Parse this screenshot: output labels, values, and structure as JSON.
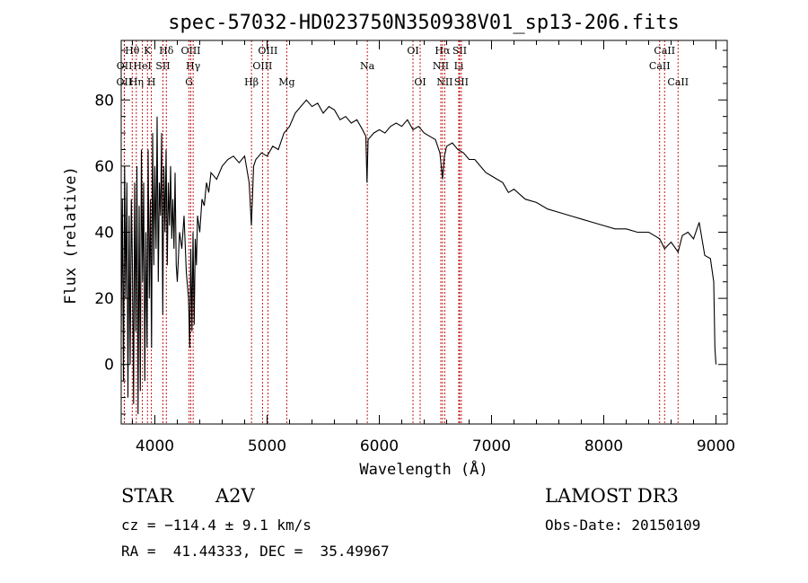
{
  "chart_data": {
    "type": "line",
    "title": "spec-57032-HD023750N350938V01_sp13-206.fits",
    "xlabel": "Wavelength (Å)",
    "ylabel": "Flux (relative)",
    "xlim": [
      3700,
      9100
    ],
    "ylim": [
      -18,
      98
    ],
    "xticks": [
      4000,
      5000,
      6000,
      7000,
      8000,
      9000
    ],
    "yticks": [
      0,
      20,
      40,
      60,
      80
    ],
    "series": [
      {
        "name": "flux",
        "x": [
          3700,
          3710,
          3720,
          3730,
          3740,
          3750,
          3760,
          3770,
          3780,
          3790,
          3800,
          3810,
          3820,
          3830,
          3840,
          3850,
          3860,
          3870,
          3880,
          3890,
          3900,
          3910,
          3920,
          3930,
          3940,
          3950,
          3960,
          3970,
          3980,
          3990,
          4000,
          4010,
          4020,
          4030,
          4040,
          4050,
          4060,
          4070,
          4080,
          4090,
          4100,
          4110,
          4120,
          4130,
          4140,
          4150,
          4160,
          4170,
          4180,
          4190,
          4200,
          4220,
          4240,
          4260,
          4280,
          4300,
          4310,
          4320,
          4330,
          4340,
          4350,
          4360,
          4370,
          4380,
          4400,
          4420,
          4440,
          4460,
          4480,
          4500,
          4550,
          4600,
          4650,
          4700,
          4750,
          4800,
          4840,
          4860,
          4880,
          4900,
          4950,
          5000,
          5050,
          5100,
          5150,
          5200,
          5250,
          5300,
          5350,
          5400,
          5450,
          5500,
          5550,
          5600,
          5650,
          5700,
          5750,
          5800,
          5850,
          5880,
          5890,
          5900,
          5950,
          6000,
          6050,
          6100,
          6150,
          6200,
          6250,
          6300,
          6350,
          6400,
          6450,
          6500,
          6540,
          6563,
          6580,
          6600,
          6650,
          6700,
          6750,
          6800,
          6850,
          6900,
          6950,
          7000,
          7050,
          7100,
          7150,
          7200,
          7300,
          7400,
          7500,
          7600,
          7700,
          7800,
          7900,
          8000,
          8100,
          8200,
          8300,
          8400,
          8450,
          8498,
          8542,
          8600,
          8662,
          8700,
          8750,
          8800,
          8850,
          8900,
          8950,
          8980,
          8990,
          9000
        ],
        "y": [
          10,
          50,
          -5,
          60,
          20,
          55,
          -10,
          45,
          0,
          50,
          30,
          -12,
          55,
          10,
          60,
          -15,
          48,
          -8,
          65,
          25,
          55,
          -5,
          40,
          5,
          65,
          20,
          50,
          5,
          70,
          30,
          60,
          35,
          75,
          25,
          55,
          45,
          70,
          15,
          60,
          40,
          65,
          30,
          55,
          42,
          60,
          38,
          50,
          35,
          58,
          30,
          25,
          40,
          35,
          45,
          28,
          20,
          5,
          35,
          10,
          40,
          12,
          38,
          30,
          45,
          40,
          50,
          48,
          55,
          52,
          58,
          56,
          60,
          62,
          63,
          61,
          63,
          55,
          42,
          60,
          62,
          64,
          63,
          66,
          65,
          70,
          72,
          76,
          78,
          80,
          78,
          79,
          76,
          78,
          77,
          74,
          75,
          73,
          74,
          71,
          69,
          55,
          68,
          70,
          71,
          70,
          72,
          73,
          72,
          74,
          71,
          72,
          70,
          69,
          68,
          64,
          56,
          63,
          66,
          67,
          65,
          64,
          62,
          62,
          60,
          58,
          57,
          56,
          55,
          52,
          53,
          50,
          49,
          47,
          46,
          45,
          44,
          43,
          42,
          41,
          41,
          40,
          40,
          39,
          38,
          35,
          37,
          34,
          39,
          40,
          38,
          43,
          33,
          32,
          25,
          5,
          0
        ]
      }
    ],
    "spectral_lines": [
      {
        "label": "OII",
        "wavelength": 3727,
        "row": 3
      },
      {
        "label": "OII",
        "wavelength": 3729,
        "row": 2
      },
      {
        "label": "Hθ",
        "wavelength": 3798,
        "row": 1
      },
      {
        "label": "K",
        "wavelength": 3934,
        "row": 1
      },
      {
        "label": "HeI",
        "wavelength": 3889,
        "row": 2
      },
      {
        "label": "Hη",
        "wavelength": 3835,
        "row": 3
      },
      {
        "label": "H",
        "wavelength": 3969,
        "row": 3
      },
      {
        "label": "SII",
        "wavelength": 4072,
        "row": 2
      },
      {
        "label": "Hδ",
        "wavelength": 4102,
        "row": 1
      },
      {
        "label": "OIII",
        "wavelength": 4320,
        "row": 1
      },
      {
        "label": "Hγ",
        "wavelength": 4341,
        "row": 2
      },
      {
        "label": "G",
        "wavelength": 4305,
        "row": 3
      },
      {
        "label": "Hβ",
        "wavelength": 4861,
        "row": 3
      },
      {
        "label": "OIII",
        "wavelength": 5007,
        "row": 1
      },
      {
        "label": "OIII",
        "wavelength": 4959,
        "row": 2
      },
      {
        "label": "Mg",
        "wavelength": 5175,
        "row": 3
      },
      {
        "label": "Na",
        "wavelength": 5893,
        "row": 2
      },
      {
        "label": "OI",
        "wavelength": 6300,
        "row": 1
      },
      {
        "label": "OI",
        "wavelength": 6364,
        "row": 3
      },
      {
        "label": "Hα",
        "wavelength": 6563,
        "row": 1
      },
      {
        "label": "NII",
        "wavelength": 6548,
        "row": 2
      },
      {
        "label": "NII",
        "wavelength": 6583,
        "row": 3
      },
      {
        "label": "SII",
        "wavelength": 6716,
        "row": 1
      },
      {
        "label": "Li",
        "wavelength": 6708,
        "row": 2
      },
      {
        "label": "SII",
        "wavelength": 6731,
        "row": 3
      },
      {
        "label": "CaII",
        "wavelength": 8542,
        "row": 1
      },
      {
        "label": "CaII",
        "wavelength": 8498,
        "row": 2
      },
      {
        "label": "CaII",
        "wavelength": 8662,
        "row": 3
      }
    ],
    "line_color": "#c00000",
    "curve_color": "#000000"
  },
  "info": {
    "object_class": "STAR",
    "subclass": "A2V",
    "survey": "LAMOST DR3",
    "cz": "cz = −114.4 ± 9.1 km/s",
    "obs_date": "Obs-Date: 20150109",
    "coords": "RA =  41.44333, DEC =  35.49967"
  }
}
